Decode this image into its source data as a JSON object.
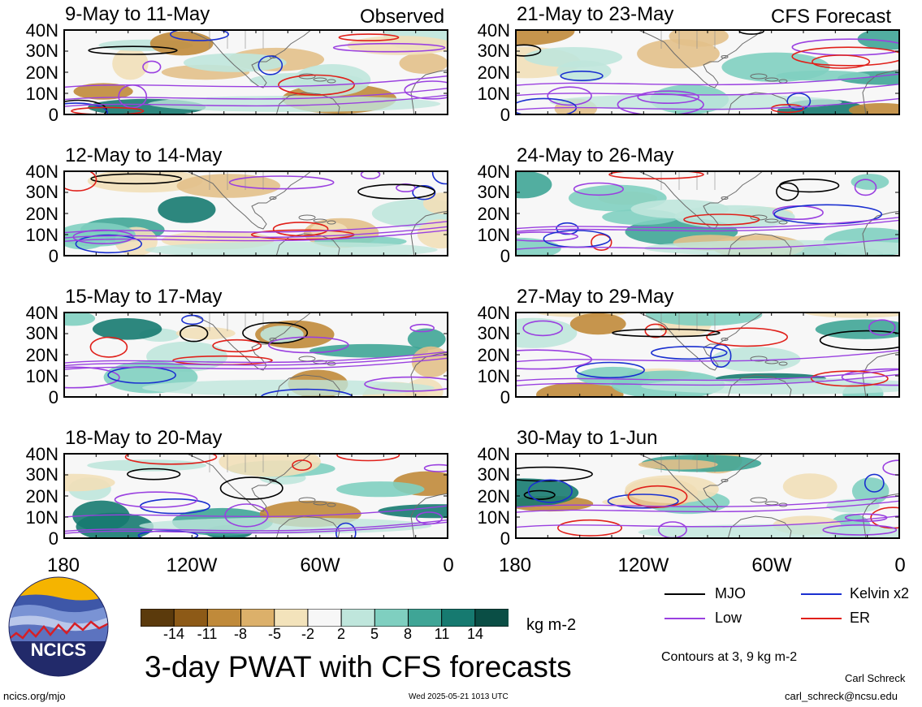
{
  "panels": [
    {
      "id": "p1",
      "title": "9-May to 11-May",
      "tag": "Observed"
    },
    {
      "id": "p2",
      "title": "21-May to 23-May",
      "tag": "CFS Forecast"
    },
    {
      "id": "p3",
      "title": "12-May to 14-May",
      "tag": ""
    },
    {
      "id": "p4",
      "title": "24-May to 26-May",
      "tag": ""
    },
    {
      "id": "p5",
      "title": "15-May to 17-May",
      "tag": ""
    },
    {
      "id": "p6",
      "title": "27-May to 29-May",
      "tag": ""
    },
    {
      "id": "p7",
      "title": "18-May to 20-May",
      "tag": ""
    },
    {
      "id": "p8",
      "title": "30-May to 1-Jun",
      "tag": ""
    }
  ],
  "lat_labels": [
    "40N",
    "30N",
    "20N",
    "10N",
    "0"
  ],
  "lon_labels": [
    "180",
    "120W",
    "60W",
    "0"
  ],
  "colorbar": {
    "labels": [
      "-14",
      "-11",
      "-8",
      "-5",
      "-2",
      "2",
      "5",
      "8",
      "11",
      "14"
    ],
    "colors": [
      "#5b3a0c",
      "#8d5a17",
      "#c08a3a",
      "#dcb06a",
      "#f3e3bb",
      "#f7f7f7",
      "#bfe6dc",
      "#7fcfc0",
      "#3fa596",
      "#167a70",
      "#0a4e45"
    ],
    "units": "kg m-2"
  },
  "legend": {
    "items": [
      {
        "label": "MJO",
        "color": "#000000"
      },
      {
        "label": "Kelvin x2",
        "color": "#1a2fd0"
      },
      {
        "label": "Low",
        "color": "#9a40e0"
      },
      {
        "label": "ER",
        "color": "#e0201a"
      }
    ],
    "contours_note": "Contours at 3, 9 kg m-2"
  },
  "main_title": "3-day PWAT with CFS forecasts",
  "logo_text": "NCICS",
  "footer": {
    "left": "ncics.org/mjo",
    "center": "Wed 2025-05-21 1013 UTC",
    "author": "Carl Schreck",
    "email": "carl_schreck@ncsu.edu"
  }
}
